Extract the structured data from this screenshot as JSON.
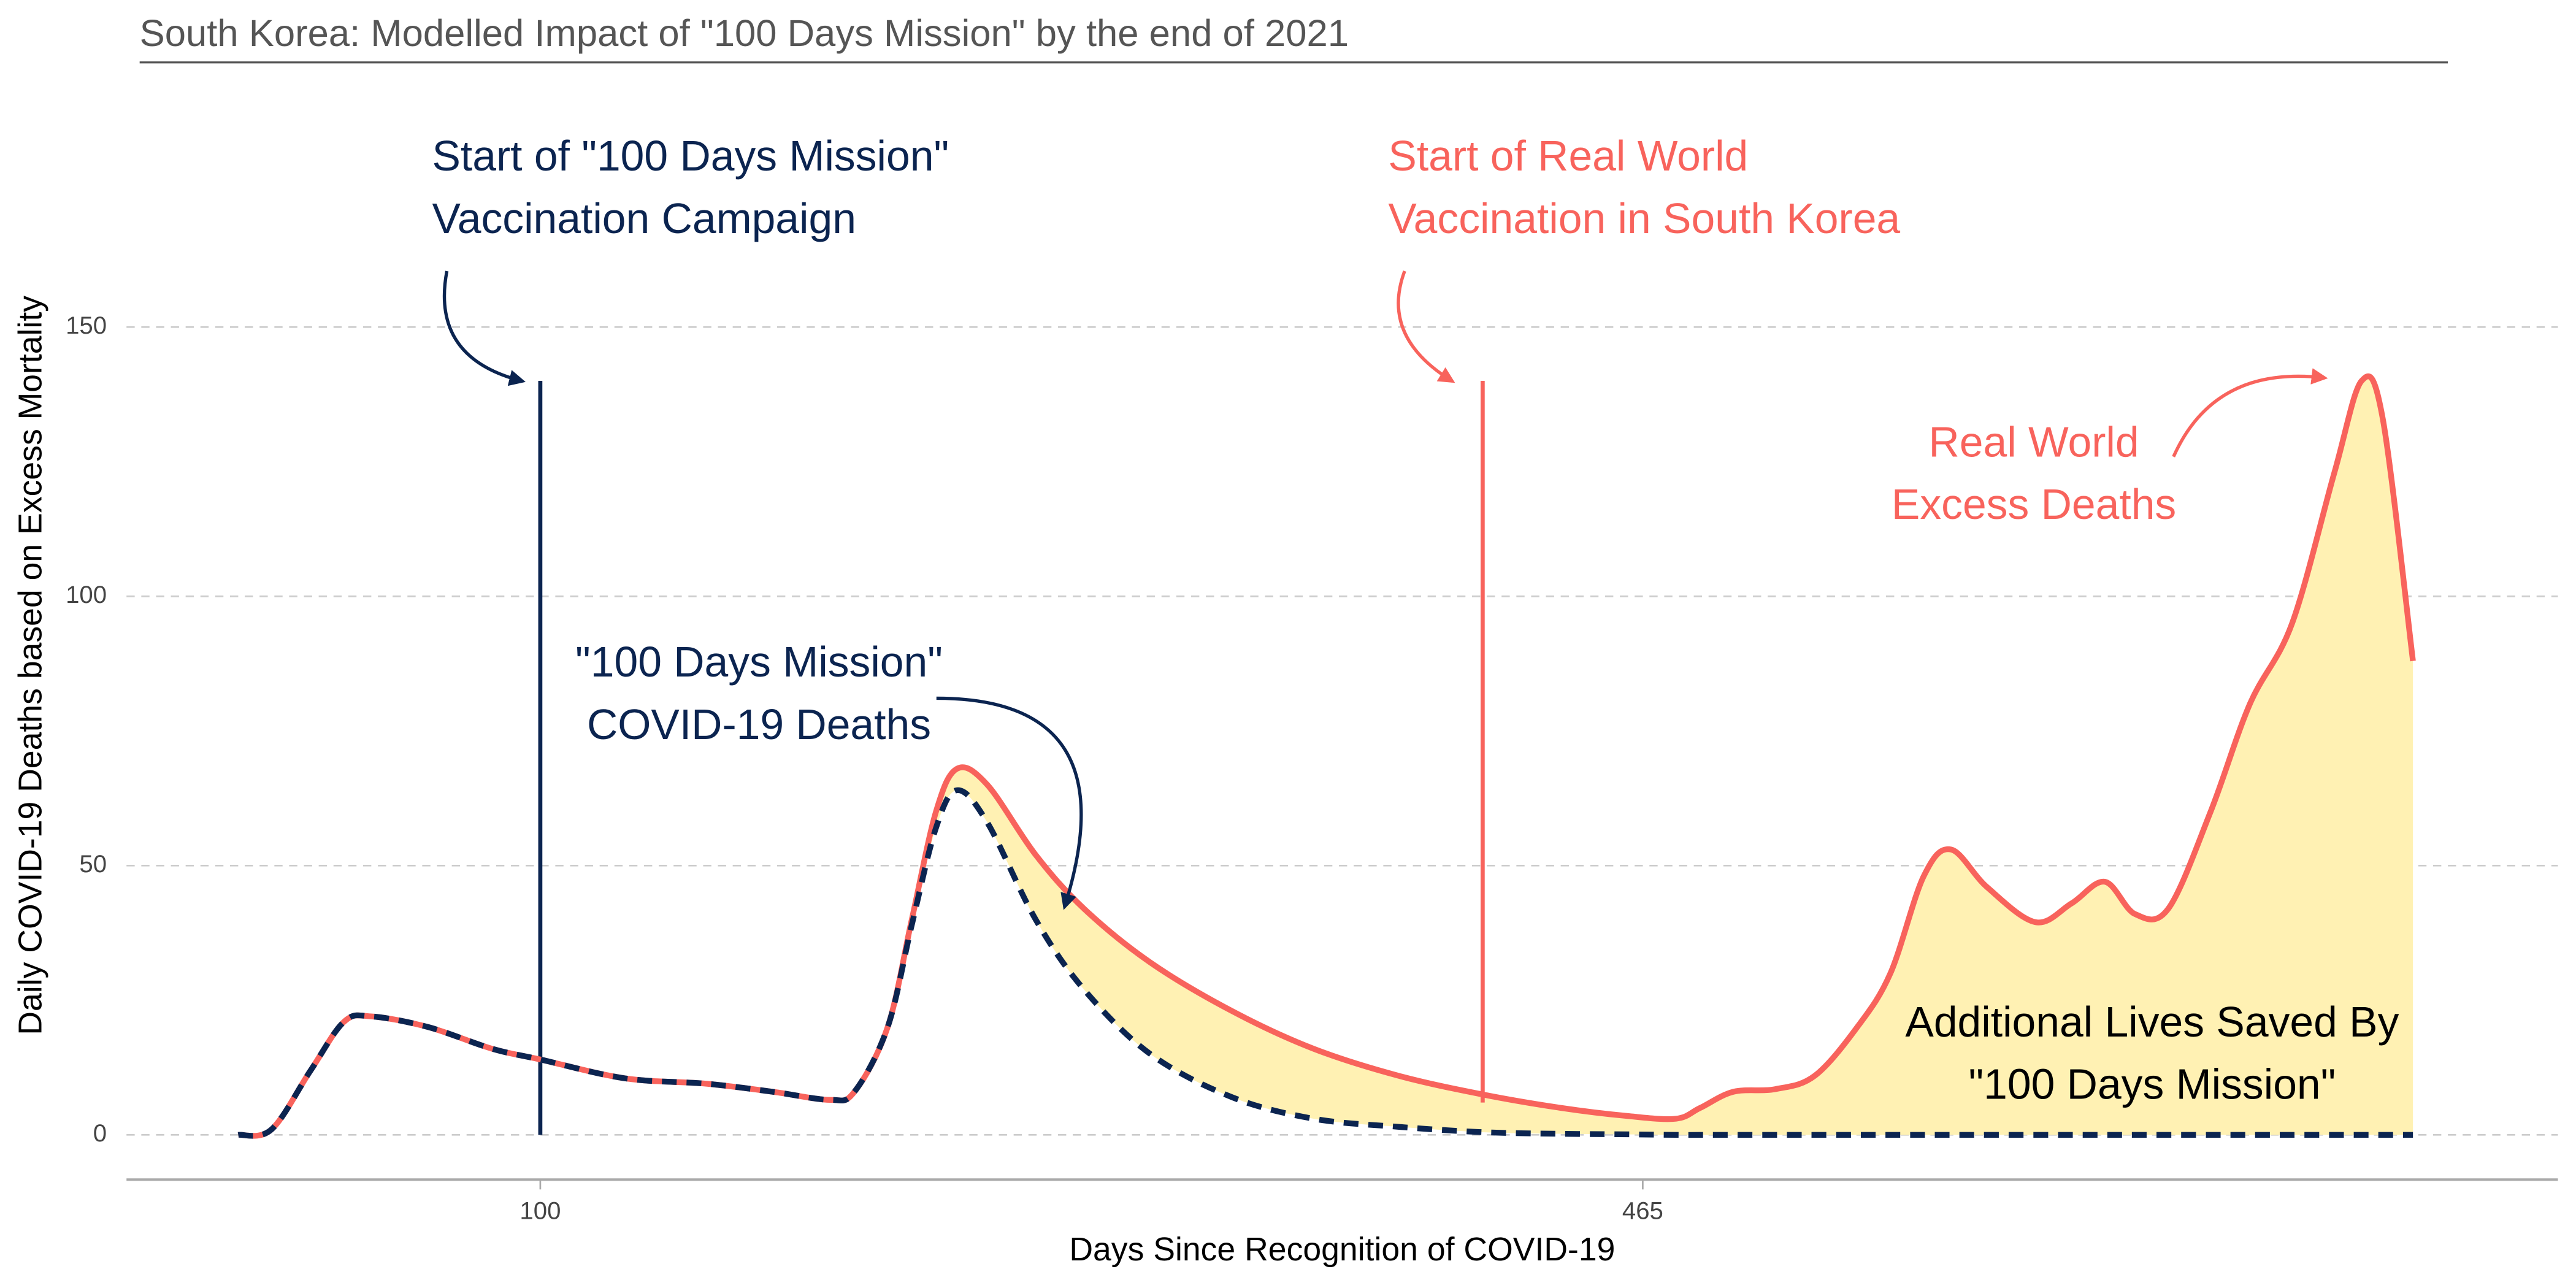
{
  "chart_data": {
    "type": "line",
    "title": "South Korea: Modelled Impact of \"100 Days Mission\" by the end of 2021",
    "x_label": "Days Since Recognition of COVID-19",
    "y_label": "Daily COVID-19 Deaths based on Excess Mortality",
    "xlim": [
      -37,
      768
    ],
    "ylim": [
      -8.3,
      197
    ],
    "xticks": [
      100,
      465
    ],
    "yticks": [
      0,
      50,
      100,
      150
    ],
    "grid": true,
    "fill_color": "#fff1b3",
    "x": [
      0,
      11,
      24,
      35,
      44,
      63,
      84,
      100,
      128,
      155,
      177,
      196,
      204,
      215,
      223,
      231,
      238,
      248,
      264,
      280,
      302,
      329,
      356,
      384,
      412,
      438,
      460,
      476,
      484,
      495,
      509,
      522,
      536,
      547,
      558,
      567,
      579,
      595,
      607,
      618,
      628,
      639,
      653,
      666,
      680,
      694,
      703,
      710,
      720
    ],
    "series": [
      {
        "color": "#f8635c",
        "dashed": false,
        "values": [
          0,
          1,
          12,
          21,
          22,
          20,
          16,
          14,
          10.5,
          9.5,
          8,
          6.5,
          8,
          20,
          40,
          60,
          68,
          65,
          52,
          42,
          32,
          23,
          16,
          11,
          7.5,
          5,
          3.5,
          3,
          5,
          8,
          8.5,
          11,
          20,
          30,
          48,
          53,
          46,
          39.5,
          43,
          47,
          41,
          42,
          60,
          80,
          95,
          123,
          140,
          133,
          88
        ]
      },
      {
        "color": "#0b2450",
        "dashed": true,
        "values": [
          0,
          1,
          12,
          21,
          22,
          20,
          16,
          14,
          10.5,
          9.5,
          8,
          6.5,
          8,
          20,
          39,
          57,
          64,
          58,
          40,
          27,
          15,
          7,
          3,
          1.5,
          0.5,
          0.2,
          0.1,
          0,
          0,
          0,
          0,
          0,
          0,
          0,
          0,
          0,
          0,
          0,
          0,
          0,
          0,
          0,
          0,
          0,
          0,
          0,
          0,
          0,
          0
        ]
      }
    ],
    "vlines": [
      {
        "x": 100,
        "ymin": 0,
        "ymax": 140,
        "color": "#0b2450"
      },
      {
        "x": 412,
        "ymin": 6,
        "ymax": 140,
        "color": "#f8635c"
      }
    ],
    "annotations": [
      {
        "lines": [
          "Start of \"100 Days Mission\"",
          "Vaccination Campaign"
        ],
        "color": "#0b2450"
      },
      {
        "lines": [
          "Start of Real World",
          "Vaccination in South Korea"
        ],
        "color": "#f8635c"
      },
      {
        "lines": [
          "Real World",
          "Excess Deaths"
        ],
        "color": "#f8635c"
      },
      {
        "lines": [
          "\"100 Days Mission\"",
          "COVID-19 Deaths"
        ],
        "color": "#0b2450"
      },
      {
        "lines": [
          "Additional Lives Saved By",
          "\"100 Days Mission\""
        ],
        "color": "#000000"
      }
    ]
  }
}
